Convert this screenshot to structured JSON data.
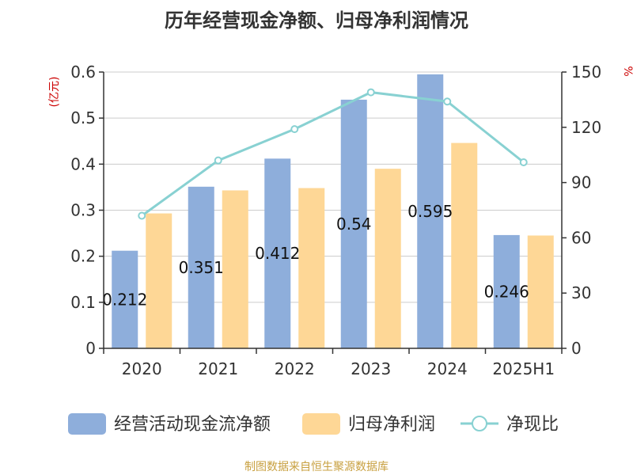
{
  "chart_data": {
    "type": "bar",
    "title": "历年经营现金净额、归母净利润情况",
    "categories": [
      "2020",
      "2021",
      "2022",
      "2023",
      "2024",
      "2025H1"
    ],
    "series": [
      {
        "name": "经营活动现金流净额",
        "type": "bar",
        "axis": "left",
        "color": "#8eaedb",
        "values": [
          0.212,
          0.351,
          0.412,
          0.54,
          0.595,
          0.246
        ],
        "labels": [
          "0.212",
          "0.351",
          "0.412",
          "0.54",
          "0.595",
          "0.246"
        ]
      },
      {
        "name": "归母净利润",
        "type": "bar",
        "axis": "left",
        "color": "#fed796",
        "values": [
          0.293,
          0.343,
          0.348,
          0.39,
          0.446,
          0.245
        ]
      },
      {
        "name": "净现比",
        "type": "line",
        "axis": "right",
        "color": "#88d1d2",
        "values": [
          72,
          102,
          119,
          139,
          134,
          101
        ]
      }
    ],
    "y_left": {
      "label": "(亿元)",
      "min": 0,
      "max": 0.6,
      "ticks": [
        "0",
        "0.1",
        "0.2",
        "0.3",
        "0.4",
        "0.5",
        "0.6"
      ]
    },
    "y_right": {
      "label": "%",
      "min": 0,
      "max": 150,
      "ticks": [
        "0",
        "30",
        "60",
        "90",
        "120",
        "150"
      ]
    },
    "grid": true,
    "legend_position": "bottom"
  },
  "footer": {
    "source": "制图数据来自恒生聚源数据库"
  }
}
